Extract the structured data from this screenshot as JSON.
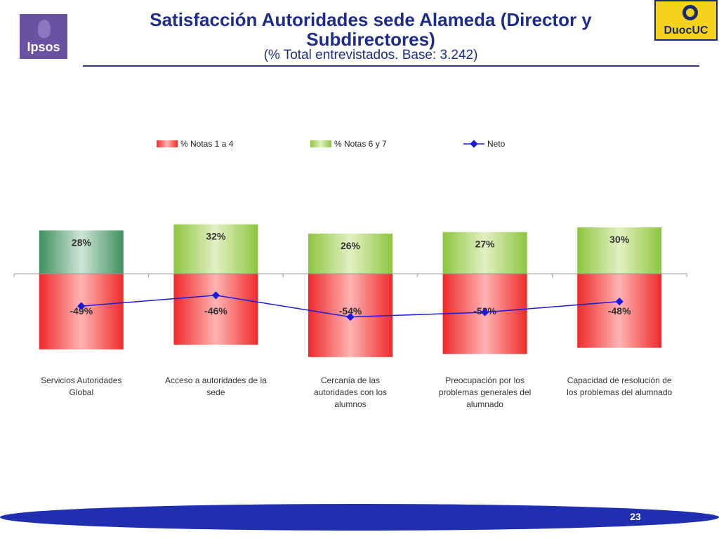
{
  "header": {
    "title": "Satisfacción Autoridades sede Alameda (Director y Subdirectores)",
    "subtitle": "(% Total entrevistados. Base: 3.242)",
    "logo_left": "Ipsos",
    "logo_right": "DuocUC"
  },
  "footer": {
    "page_number": "23"
  },
  "chart_data": {
    "type": "bar",
    "categories": [
      "Servicios Autoridades Global",
      "Acceso a autoridades de la sede",
      "Cercanía de las autoridades con los alumnos",
      "Preocupación por los problemas generales del alumnado",
      "Capacidad de resolución de los problemas del alumnado"
    ],
    "series": [
      {
        "name": "% Notas 1 a 4",
        "values": [
          -49,
          -46,
          -54,
          -52,
          -48
        ],
        "value_labels": [
          "-49%",
          "-46%",
          "-54%",
          "-52%",
          "-48%"
        ],
        "color": "#ee2a2a"
      },
      {
        "name": "% Notas 6 y 7",
        "values": [
          28,
          32,
          26,
          27,
          30
        ],
        "value_labels": [
          "28%",
          "32%",
          "26%",
          "27%",
          "30%"
        ],
        "color": "#8dc63f",
        "first_bar_color": "#3e8f5e"
      },
      {
        "name": "Neto",
        "values": [
          -21,
          -14,
          -28,
          -25,
          -18
        ],
        "color": "#1a1adf"
      }
    ],
    "ylim": [
      -57,
      36
    ],
    "legend": "top",
    "grid": false
  }
}
